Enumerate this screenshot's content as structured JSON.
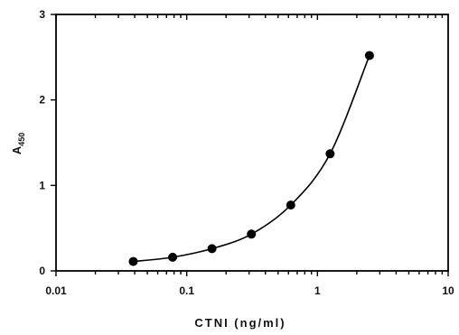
{
  "chart_data": {
    "type": "scatter",
    "xlabel": "CTNI (ng/ml)",
    "ylabel": "A",
    "ylabel_subscript": "450",
    "xscale": "log",
    "xlim": [
      0.01,
      10
    ],
    "ylim": [
      0,
      3
    ],
    "x_ticks": [
      {
        "value": 0.01,
        "label": "0.01"
      },
      {
        "value": 0.1,
        "label": "0.1"
      },
      {
        "value": 1,
        "label": "1"
      },
      {
        "value": 10,
        "label": "10"
      }
    ],
    "y_ticks": [
      {
        "value": 0,
        "label": "0"
      },
      {
        "value": 1,
        "label": "1"
      },
      {
        "value": 2,
        "label": "2"
      },
      {
        "value": 3,
        "label": "3"
      }
    ],
    "grid": false,
    "series": [
      {
        "points": [
          {
            "x": 0.039,
            "y": 0.11
          },
          {
            "x": 0.078,
            "y": 0.16
          },
          {
            "x": 0.156,
            "y": 0.26
          },
          {
            "x": 0.3125,
            "y": 0.43
          },
          {
            "x": 0.625,
            "y": 0.77
          },
          {
            "x": 1.25,
            "y": 1.37
          },
          {
            "x": 2.5,
            "y": 2.52
          }
        ],
        "fit_curve": true,
        "marker_color": "#000000",
        "line_color": "#000000"
      }
    ]
  }
}
